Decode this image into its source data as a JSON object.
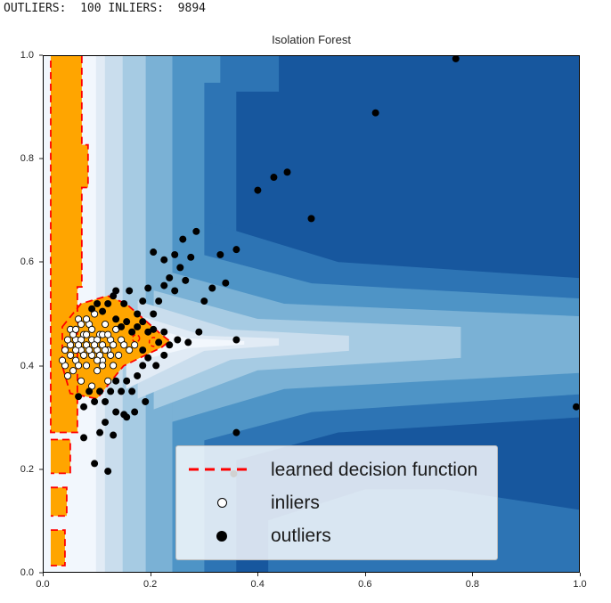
{
  "header": {
    "stats_line": "OUTLIERS:  100 INLIERS:  9894"
  },
  "counts": {
    "outliers": 100,
    "inliers": 9894
  },
  "chart_data": {
    "type": "scatter",
    "title": "Isolation Forest",
    "xlabel": "",
    "ylabel": "",
    "xlim": [
      0.0,
      1.0
    ],
    "ylim": [
      0.0,
      1.0
    ],
    "grid": false,
    "x_ticks": [
      "0.0",
      "0.2",
      "0.4",
      "0.6",
      "0.8",
      "1.0"
    ],
    "y_ticks": [
      "0.0",
      "0.2",
      "0.4",
      "0.6",
      "0.8",
      "1.0"
    ],
    "band_colors": [
      "#17579e",
      "#2d74b4",
      "#4e94c6",
      "#7ab1d5",
      "#a6cbe3",
      "#c9dded",
      "#e1ebf5",
      "#f2f7fd"
    ],
    "anomaly_color": "#ffa500",
    "decision_boundary_color": "#ff0000",
    "legend": {
      "position": "lower-right",
      "entries": [
        {
          "label": "learned decision function",
          "marker": "dashed-red-line"
        },
        {
          "label": "inliers",
          "marker": "open-circle"
        },
        {
          "label": "outliers",
          "marker": "filled-black-circle"
        }
      ]
    },
    "series": [
      {
        "name": "inliers",
        "marker": {
          "shape": "circle",
          "fill": "#ffffff",
          "stroke": "#000000",
          "stroke_width": 0.9,
          "radius": 3.6
        },
        "points": [
          [
            0.04,
            0.4
          ],
          [
            0.05,
            0.44
          ],
          [
            0.05,
            0.47
          ],
          [
            0.06,
            0.41
          ],
          [
            0.06,
            0.45
          ],
          [
            0.065,
            0.49
          ],
          [
            0.07,
            0.37
          ],
          [
            0.07,
            0.43
          ],
          [
            0.075,
            0.46
          ],
          [
            0.08,
            0.4
          ],
          [
            0.08,
            0.44
          ],
          [
            0.085,
            0.48
          ],
          [
            0.09,
            0.36
          ],
          [
            0.09,
            0.42
          ],
          [
            0.09,
            0.45
          ],
          [
            0.095,
            0.5
          ],
          [
            0.1,
            0.39
          ],
          [
            0.1,
            0.43
          ],
          [
            0.105,
            0.46
          ],
          [
            0.11,
            0.41
          ],
          [
            0.11,
            0.44
          ],
          [
            0.115,
            0.48
          ],
          [
            0.12,
            0.37
          ],
          [
            0.12,
            0.43
          ],
          [
            0.125,
            0.45
          ],
          [
            0.13,
            0.4
          ],
          [
            0.13,
            0.44
          ],
          [
            0.135,
            0.47
          ],
          [
            0.14,
            0.42
          ],
          [
            0.145,
            0.45
          ],
          [
            0.05,
            0.42
          ],
          [
            0.06,
            0.43
          ],
          [
            0.07,
            0.45
          ],
          [
            0.08,
            0.46
          ],
          [
            0.09,
            0.47
          ],
          [
            0.1,
            0.45
          ],
          [
            0.11,
            0.46
          ],
          [
            0.12,
            0.46
          ],
          [
            0.065,
            0.44
          ],
          [
            0.075,
            0.42
          ],
          [
            0.085,
            0.43
          ],
          [
            0.095,
            0.44
          ],
          [
            0.105,
            0.42
          ],
          [
            0.115,
            0.43
          ],
          [
            0.125,
            0.42
          ],
          [
            0.04,
            0.43
          ],
          [
            0.045,
            0.45
          ],
          [
            0.055,
            0.46
          ],
          [
            0.06,
            0.47
          ],
          [
            0.07,
            0.48
          ],
          [
            0.08,
            0.49
          ],
          [
            0.15,
            0.44
          ],
          [
            0.16,
            0.43
          ],
          [
            0.17,
            0.44
          ],
          [
            0.1,
            0.41
          ],
          [
            0.11,
            0.4
          ],
          [
            0.035,
            0.41
          ],
          [
            0.045,
            0.38
          ],
          [
            0.055,
            0.39
          ],
          [
            0.065,
            0.4
          ]
        ]
      },
      {
        "name": "outliers",
        "marker": {
          "shape": "circle",
          "fill": "#000000",
          "stroke": "none",
          "stroke_width": 0,
          "radius": 4
        },
        "points": [
          [
            0.62,
            0.89
          ],
          [
            0.77,
            0.995
          ],
          [
            0.5,
            0.685
          ],
          [
            0.455,
            0.775
          ],
          [
            0.43,
            0.765
          ],
          [
            0.4,
            0.74
          ],
          [
            0.36,
            0.625
          ],
          [
            0.33,
            0.615
          ],
          [
            0.285,
            0.66
          ],
          [
            0.36,
            0.27
          ],
          [
            0.355,
            0.19
          ],
          [
            0.995,
            0.32
          ],
          [
            0.36,
            0.45
          ],
          [
            0.3,
            0.525
          ],
          [
            0.315,
            0.55
          ],
          [
            0.34,
            0.56
          ],
          [
            0.26,
            0.645
          ],
          [
            0.095,
            0.21
          ],
          [
            0.12,
            0.195
          ],
          [
            0.075,
            0.26
          ],
          [
            0.13,
            0.265
          ],
          [
            0.155,
            0.3
          ],
          [
            0.105,
            0.27
          ],
          [
            0.135,
            0.545
          ],
          [
            0.15,
            0.52
          ],
          [
            0.16,
            0.545
          ],
          [
            0.175,
            0.5
          ],
          [
            0.185,
            0.525
          ],
          [
            0.195,
            0.55
          ],
          [
            0.205,
            0.5
          ],
          [
            0.215,
            0.525
          ],
          [
            0.225,
            0.555
          ],
          [
            0.235,
            0.57
          ],
          [
            0.245,
            0.545
          ],
          [
            0.255,
            0.59
          ],
          [
            0.265,
            0.565
          ],
          [
            0.225,
            0.605
          ],
          [
            0.205,
            0.62
          ],
          [
            0.245,
            0.615
          ],
          [
            0.275,
            0.61
          ],
          [
            0.135,
            0.49
          ],
          [
            0.145,
            0.475
          ],
          [
            0.155,
            0.485
          ],
          [
            0.165,
            0.465
          ],
          [
            0.175,
            0.475
          ],
          [
            0.185,
            0.485
          ],
          [
            0.195,
            0.465
          ],
          [
            0.205,
            0.47
          ],
          [
            0.215,
            0.445
          ],
          [
            0.225,
            0.465
          ],
          [
            0.235,
            0.44
          ],
          [
            0.25,
            0.45
          ],
          [
            0.27,
            0.445
          ],
          [
            0.29,
            0.465
          ],
          [
            0.12,
            0.52
          ],
          [
            0.11,
            0.505
          ],
          [
            0.1,
            0.52
          ],
          [
            0.09,
            0.51
          ],
          [
            0.13,
            0.535
          ],
          [
            0.085,
            0.35
          ],
          [
            0.095,
            0.33
          ],
          [
            0.105,
            0.35
          ],
          [
            0.115,
            0.33
          ],
          [
            0.125,
            0.35
          ],
          [
            0.135,
            0.37
          ],
          [
            0.145,
            0.35
          ],
          [
            0.155,
            0.37
          ],
          [
            0.165,
            0.35
          ],
          [
            0.175,
            0.38
          ],
          [
            0.185,
            0.4
          ],
          [
            0.075,
            0.32
          ],
          [
            0.065,
            0.34
          ],
          [
            0.15,
            0.305
          ],
          [
            0.17,
            0.31
          ],
          [
            0.19,
            0.33
          ],
          [
            0.135,
            0.31
          ],
          [
            0.115,
            0.29
          ],
          [
            0.185,
            0.43
          ],
          [
            0.195,
            0.415
          ],
          [
            0.21,
            0.4
          ],
          [
            0.225,
            0.42
          ]
        ]
      }
    ]
  }
}
